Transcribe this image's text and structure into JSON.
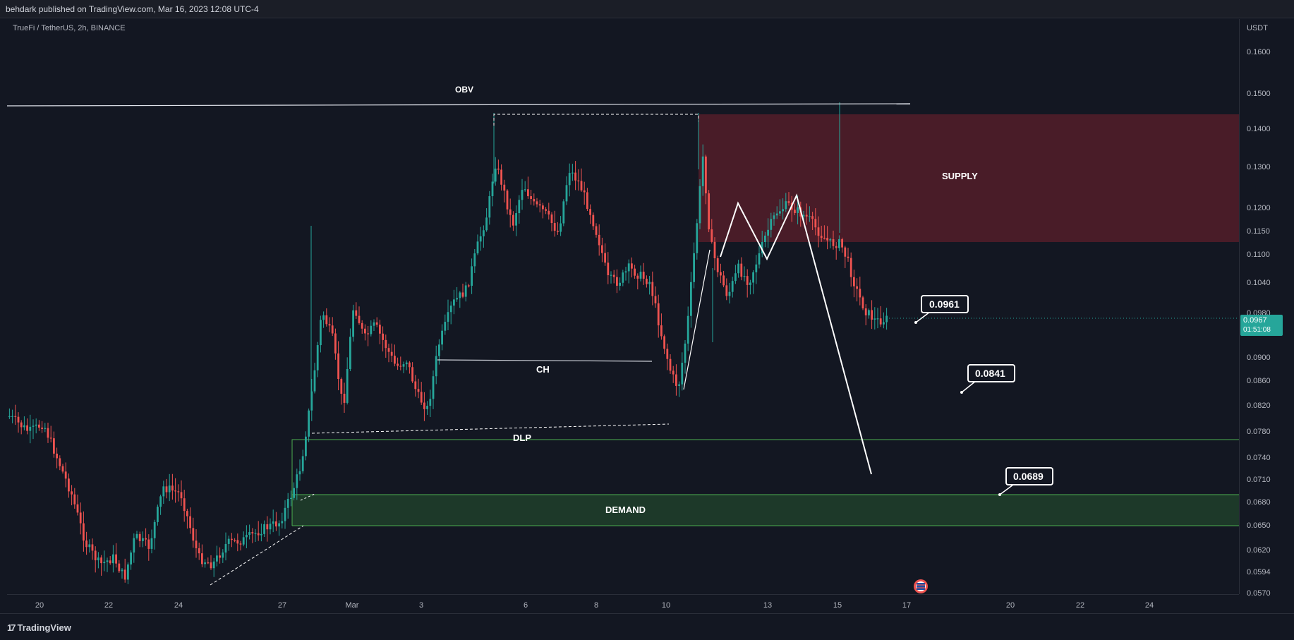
{
  "header": {
    "published_line": "behdark published on TradingView.com, Mar 16, 2023 12:08 UTC-4"
  },
  "chart": {
    "symbol_line": "TrueFi / TetherUS, 2h, BINANCE",
    "currency": "USDT",
    "price_ticks": [
      "0.1600",
      "0.1500",
      "0.1400",
      "0.1300",
      "0.1200",
      "0.1150",
      "0.1100",
      "0.1040",
      "0.0980",
      "0.0940",
      "0.0900",
      "0.0860",
      "0.0820",
      "0.0780",
      "0.0740",
      "0.0710",
      "0.0680",
      "0.0650",
      "0.0620",
      "0.0594",
      "0.0570"
    ],
    "time_ticks": [
      "20",
      "22",
      "24",
      "27",
      "Mar",
      "3",
      "6",
      "8",
      "10",
      "13",
      "15",
      "17",
      "20",
      "22",
      "24"
    ],
    "current_price": "0.0967",
    "countdown": "01:51:08",
    "labels": {
      "obv": "OBV",
      "ch": "CH",
      "dlp": "DLP",
      "supply": "SUPPLY",
      "demand": "DEMAND"
    },
    "callouts": [
      "0.0961",
      "0.0841",
      "0.0689"
    ],
    "colors": {
      "background": "#131722",
      "bull": "#26a69a",
      "bear": "#ef5350",
      "supply_zone": "#5c1f2b",
      "demand_zone": "#1e3b2a",
      "demand_border": "#4caf50"
    }
  },
  "footer": {
    "brand": "TradingView"
  }
}
